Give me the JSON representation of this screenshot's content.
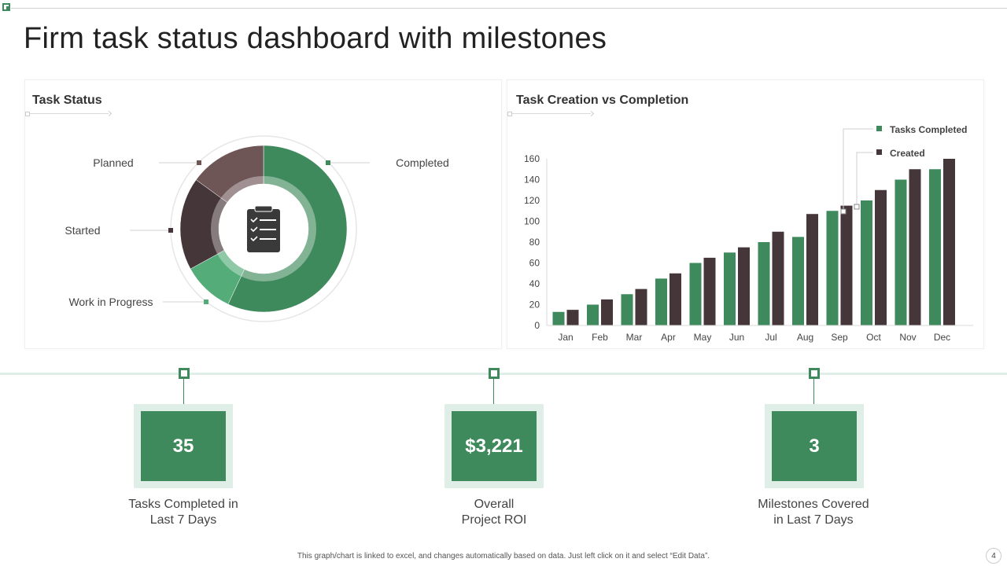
{
  "page": {
    "title": "Firm task status dashboard with milestones"
  },
  "task_status": {
    "title": "Task Status",
    "labels": {
      "planned": "Planned",
      "completed": "Completed",
      "started": "Started",
      "wip": "Work in Progress"
    },
    "icon": "clipboard-checklist-icon"
  },
  "bar_panel": {
    "title": "Task Creation vs Completion",
    "legend": {
      "completed": "Tasks Completed",
      "created": "Created"
    }
  },
  "chart_data": [
    {
      "type": "pie",
      "title": "Task Status",
      "style": "donut",
      "slices": [
        {
          "name": "Completed",
          "value": 57,
          "color": "#3f8a5c"
        },
        {
          "name": "Work in Progress",
          "value": 10,
          "color": "#54ad78"
        },
        {
          "name": "Started",
          "value": 18,
          "color": "#45363a"
        },
        {
          "name": "Planned",
          "value": 15,
          "color": "#6e5556"
        }
      ]
    },
    {
      "type": "bar",
      "title": "Task Creation vs Completion",
      "categories": [
        "Jan",
        "Feb",
        "Mar",
        "Apr",
        "May",
        "Jun",
        "Jul",
        "Aug",
        "Sep",
        "Oct",
        "Nov",
        "Dec"
      ],
      "series": [
        {
          "name": "Tasks Completed",
          "color": "#3f8a5c",
          "values": [
            13,
            20,
            30,
            45,
            60,
            70,
            80,
            85,
            110,
            120,
            140,
            150
          ]
        },
        {
          "name": "Created",
          "color": "#45363a",
          "values": [
            15,
            25,
            35,
            50,
            65,
            75,
            90,
            107,
            115,
            130,
            150,
            160
          ]
        }
      ],
      "ylim": [
        0,
        160
      ],
      "yticks": [
        0,
        20,
        40,
        60,
        80,
        100,
        120,
        140,
        160
      ],
      "legend_position": "top-right"
    }
  ],
  "kpis": [
    {
      "value": "35",
      "label_line1": "Tasks Completed in",
      "label_line2": "Last 7 Days"
    },
    {
      "value": "$3,221",
      "label_line1": "Overall",
      "label_line2": "Project ROI"
    },
    {
      "value": "3",
      "label_line1": "Milestones Covered",
      "label_line2": "in Last 7 Days"
    }
  ],
  "footer": {
    "note": "This graph/chart is linked to excel, and changes automatically based on data. Just left click on it and select “Edit Data”.",
    "page_number": "4"
  }
}
